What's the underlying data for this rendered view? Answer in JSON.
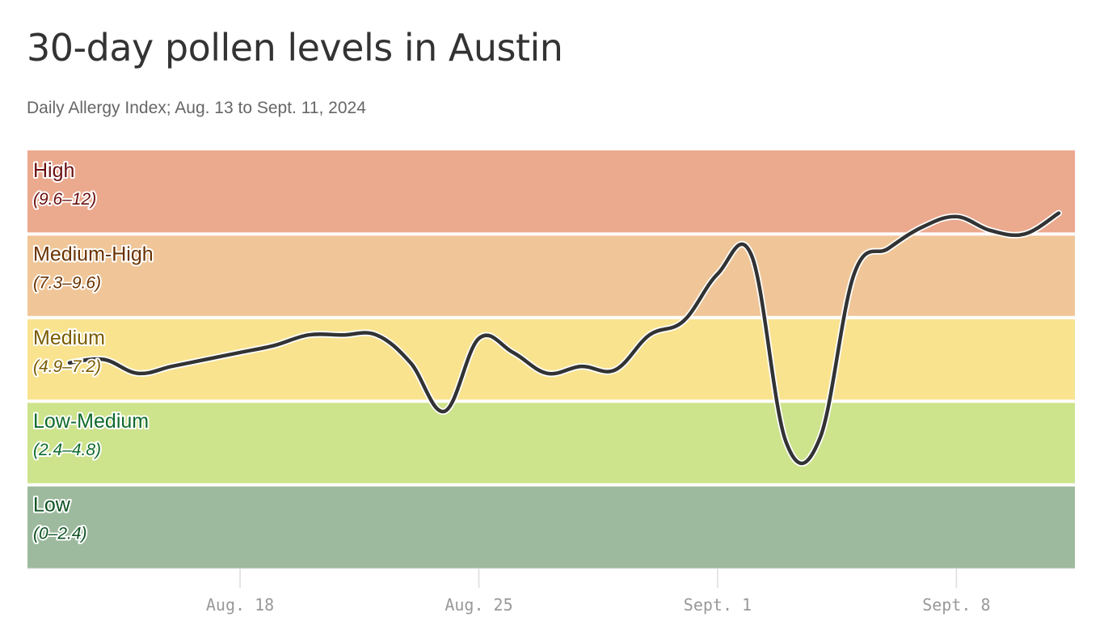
{
  "title": "30-day pollen levels in Austin",
  "subtitle": "Daily Allergy Index; Aug. 13 to Sept. 11, 2024",
  "chart_data": {
    "type": "line",
    "ylim": [
      0,
      12
    ],
    "x_range": [
      "2024-08-13",
      "2024-09-11"
    ],
    "bands": [
      {
        "label": "High",
        "range_label": "(9.6–12)",
        "min": 9.6,
        "max": 12,
        "fill": "#eba98e",
        "text_color": "#6b0f0f"
      },
      {
        "label": "Medium-High",
        "range_label": "(7.3–9.6)",
        "min": 7.3,
        "max": 9.6,
        "fill": "#f0c698",
        "text_color": "#6b3300"
      },
      {
        "label": "Medium",
        "range_label": "(4.9–7.2)",
        "min": 4.9,
        "max": 7.3,
        "fill": "#f9e38f",
        "text_color": "#7a5c00"
      },
      {
        "label": "Low-Medium",
        "range_label": "(2.4–4.8)",
        "min": 2.4,
        "max": 4.9,
        "fill": "#cde38c",
        "text_color": "#0f6b2b"
      },
      {
        "label": "Low",
        "range_label": "(0–2.4)",
        "min": 0,
        "max": 2.4,
        "fill": "#9eba9e",
        "text_color": "#0d5220"
      }
    ],
    "x_ticks": [
      {
        "date": "2024-08-18",
        "label": "Aug. 18"
      },
      {
        "date": "2024-08-25",
        "label": "Aug. 25"
      },
      {
        "date": "2024-09-01",
        "label": "Sept. 1"
      },
      {
        "date": "2024-09-08",
        "label": "Sept. 8"
      }
    ],
    "series": [
      {
        "color": "#333333",
        "points": [
          {
            "x": "2024-08-13",
            "y": 6.0
          },
          {
            "x": "2024-08-14",
            "y": 6.1
          },
          {
            "x": "2024-08-15",
            "y": 5.7
          },
          {
            "x": "2024-08-16",
            "y": 5.9
          },
          {
            "x": "2024-08-17",
            "y": 6.1
          },
          {
            "x": "2024-08-18",
            "y": 6.3
          },
          {
            "x": "2024-08-19",
            "y": 6.5
          },
          {
            "x": "2024-08-20",
            "y": 6.8
          },
          {
            "x": "2024-08-21",
            "y": 6.8
          },
          {
            "x": "2024-08-22",
            "y": 6.8
          },
          {
            "x": "2024-08-23",
            "y": 6.0
          },
          {
            "x": "2024-08-24",
            "y": 4.6
          },
          {
            "x": "2024-08-25",
            "y": 6.7
          },
          {
            "x": "2024-08-26",
            "y": 6.3
          },
          {
            "x": "2024-08-27",
            "y": 5.7
          },
          {
            "x": "2024-08-28",
            "y": 5.9
          },
          {
            "x": "2024-08-29",
            "y": 5.8
          },
          {
            "x": "2024-08-30",
            "y": 6.8
          },
          {
            "x": "2024-08-31",
            "y": 7.2
          },
          {
            "x": "2024-09-01",
            "y": 8.5
          },
          {
            "x": "2024-09-02",
            "y": 9.0
          },
          {
            "x": "2024-09-03",
            "y": 3.7
          },
          {
            "x": "2024-09-04",
            "y": 3.8
          },
          {
            "x": "2024-09-05",
            "y": 8.5
          },
          {
            "x": "2024-09-06",
            "y": 9.2
          },
          {
            "x": "2024-09-07",
            "y": 9.8
          },
          {
            "x": "2024-09-08",
            "y": 10.1
          },
          {
            "x": "2024-09-09",
            "y": 9.7
          },
          {
            "x": "2024-09-10",
            "y": 9.6
          },
          {
            "x": "2024-09-11",
            "y": 10.2
          }
        ]
      }
    ]
  }
}
